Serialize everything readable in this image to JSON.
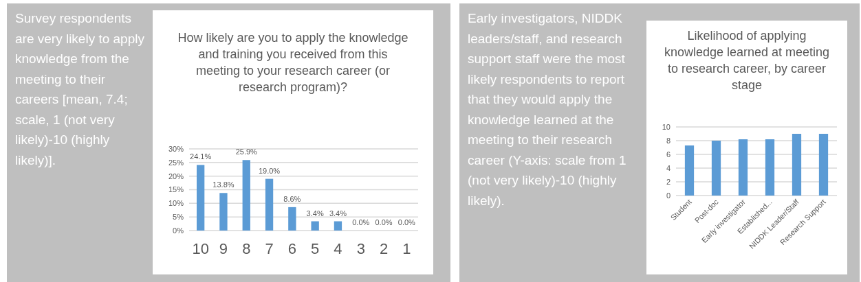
{
  "chart_data": [
    {
      "type": "other",
      "annotations": [
        "Survey respondents are very likely to apply knowledge from the meeting to their careers [mean, 7.4; scale, 1 (not very likely)-10 (highly likely)]."
      ]
    },
    {
      "type": "bar",
      "title": "How likely are you to apply the knowledge and training you received from this meeting to your research career (or research program)?",
      "categories": [
        "10",
        "9",
        "8",
        "7",
        "6",
        "5",
        "4",
        "3",
        "2",
        "1"
      ],
      "values": [
        24.1,
        13.8,
        25.9,
        19.0,
        8.6,
        3.4,
        3.4,
        0.0,
        0.0,
        0.0
      ],
      "value_labels": [
        "24.1%",
        "13.8%",
        "25.9%",
        "19.0%",
        "8.6%",
        "3.4%",
        "3.4%",
        "0.0%",
        "0.0%",
        "0.0%"
      ],
      "color": "#5b9bd5",
      "ylim": [
        0,
        30
      ],
      "yticks": [
        {
          "value": 0,
          "label": "0%"
        },
        {
          "value": 5,
          "label": "5%"
        },
        {
          "value": 10,
          "label": "10%"
        },
        {
          "value": 15,
          "label": "15%"
        },
        {
          "value": 20,
          "label": "20%"
        },
        {
          "value": 25,
          "label": "25%"
        },
        {
          "value": 30,
          "label": "30%"
        }
      ],
      "grid": "y"
    },
    {
      "type": "other",
      "annotations": [
        "Early investigators, NIDDK leaders/staff, and research support staff were the most likely respondents to report that they would apply the knowledge learned at the meeting to their research career (Y-axis: scale from 1 (not very likely)-10 (highly likely)."
      ]
    },
    {
      "type": "bar",
      "title": "Likelihood of applying knowledge learned at meeting to research career, by career stage",
      "categories": [
        "Student",
        "Post-doc",
        "Early investigator",
        "Established...",
        "NIDDK Leader/Staff",
        "Research Support"
      ],
      "values": [
        7.3,
        8.0,
        8.2,
        8.2,
        9.0,
        9.0
      ],
      "color": "#5b9bd5",
      "ylim": [
        0,
        10
      ],
      "yticks": [
        0,
        2,
        4,
        6,
        8,
        10
      ],
      "grid": "y"
    }
  ]
}
